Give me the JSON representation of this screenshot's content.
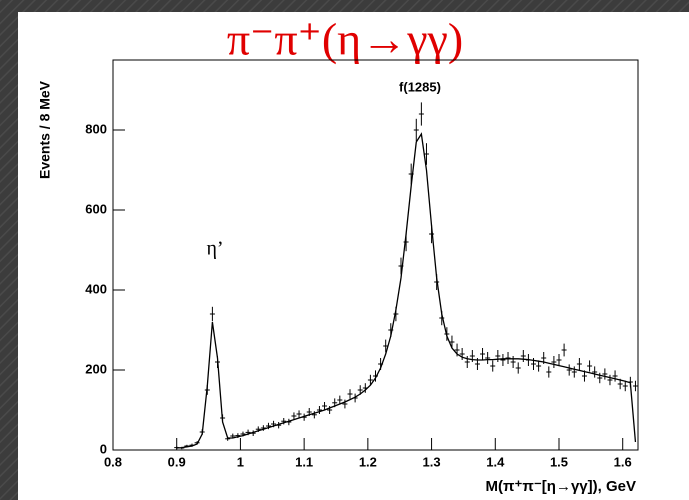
{
  "chart_data": {
    "type": "errorbar",
    "title": "π⁻π⁺(η→γγ)",
    "x_label": "M(π⁺π⁻[η→γγ]), GeV",
    "y_label": "Events / 8 MeV",
    "annotations": [
      "f(1285)",
      "η’"
    ],
    "xlim": [
      0.8,
      1.624
    ],
    "ylim": [
      0,
      975
    ],
    "xticks": [
      0.8,
      0.9,
      1,
      1.1,
      1.2,
      1.3,
      1.4,
      1.5,
      1.6
    ],
    "yticks": [
      0,
      200,
      400,
      600,
      800
    ],
    "x": [
      0.9,
      0.908,
      0.916,
      0.924,
      0.932,
      0.94,
      0.948,
      0.956,
      0.964,
      0.972,
      0.98,
      0.988,
      0.996,
      1.004,
      1.012,
      1.02,
      1.028,
      1.036,
      1.044,
      1.052,
      1.06,
      1.068,
      1.076,
      1.084,
      1.092,
      1.1,
      1.108,
      1.116,
      1.124,
      1.132,
      1.14,
      1.148,
      1.156,
      1.164,
      1.172,
      1.18,
      1.188,
      1.196,
      1.204,
      1.212,
      1.22,
      1.228,
      1.236,
      1.244,
      1.252,
      1.26,
      1.268,
      1.276,
      1.284,
      1.292,
      1.3,
      1.308,
      1.316,
      1.324,
      1.332,
      1.34,
      1.348,
      1.356,
      1.364,
      1.372,
      1.38,
      1.388,
      1.396,
      1.404,
      1.412,
      1.42,
      1.428,
      1.436,
      1.444,
      1.452,
      1.46,
      1.468,
      1.476,
      1.484,
      1.492,
      1.5,
      1.508,
      1.516,
      1.524,
      1.532,
      1.54,
      1.548,
      1.556,
      1.564,
      1.572,
      1.58,
      1.588,
      1.596,
      1.604,
      1.612,
      1.62
    ],
    "series": [
      {
        "type": "errorbar",
        "color": "#000000",
        "values": [
          6,
          5,
          10,
          12,
          18,
          45,
          150,
          340,
          220,
          80,
          28,
          35,
          36,
          40,
          44,
          42,
          52,
          55,
          60,
          65,
          62,
          72,
          70,
          85,
          90,
          82,
          95,
          88,
          100,
          110,
          100,
          118,
          125,
          115,
          140,
          130,
          150,
          155,
          175,
          185,
          215,
          260,
          300,
          340,
          460,
          520,
          690,
          800,
          840,
          740,
          540,
          420,
          330,
          290,
          270,
          250,
          240,
          220,
          235,
          215,
          240,
          230,
          210,
          235,
          225,
          230,
          220,
          205,
          235,
          225,
          215,
          210,
          230,
          195,
          220,
          225,
          250,
          200,
          195,
          215,
          185,
          210,
          195,
          180,
          190,
          175,
          185,
          165,
          160,
          170,
          160
        ],
        "errors": [
          3,
          3,
          3,
          4,
          4,
          7,
          12,
          18,
          15,
          9,
          5,
          6,
          6,
          6,
          7,
          7,
          7,
          7,
          8,
          8,
          8,
          8,
          8,
          9,
          9,
          9,
          10,
          9,
          10,
          10,
          10,
          11,
          11,
          11,
          12,
          11,
          12,
          12,
          13,
          14,
          15,
          16,
          17,
          18,
          21,
          23,
          26,
          28,
          29,
          27,
          23,
          20,
          18,
          17,
          16,
          16,
          15,
          15,
          15,
          15,
          15,
          15,
          14,
          15,
          15,
          15,
          15,
          14,
          15,
          15,
          15,
          14,
          15,
          14,
          15,
          15,
          16,
          14,
          14,
          15,
          14,
          14,
          14,
          13,
          14,
          13,
          14,
          13,
          13,
          13,
          13
        ]
      },
      {
        "type": "line",
        "color": "#000000",
        "values": [
          5,
          6,
          8,
          10,
          15,
          40,
          160,
          320,
          230,
          70,
          30,
          30,
          33,
          36,
          40,
          44,
          48,
          52,
          56,
          60,
          64,
          68,
          72,
          76,
          80,
          84,
          88,
          92,
          96,
          100,
          105,
          110,
          115,
          120,
          126,
          132,
          140,
          150,
          162,
          180,
          205,
          240,
          285,
          350,
          430,
          540,
          660,
          770,
          790,
          700,
          560,
          430,
          340,
          285,
          255,
          240,
          232,
          228,
          226,
          225,
          225,
          226,
          226,
          227,
          228,
          228,
          228,
          228,
          227,
          226,
          224,
          222,
          220,
          217,
          214,
          211,
          208,
          205,
          202,
          199,
          196,
          193,
          190,
          187,
          184,
          181,
          178,
          175,
          172,
          168,
          20
        ]
      }
    ]
  }
}
